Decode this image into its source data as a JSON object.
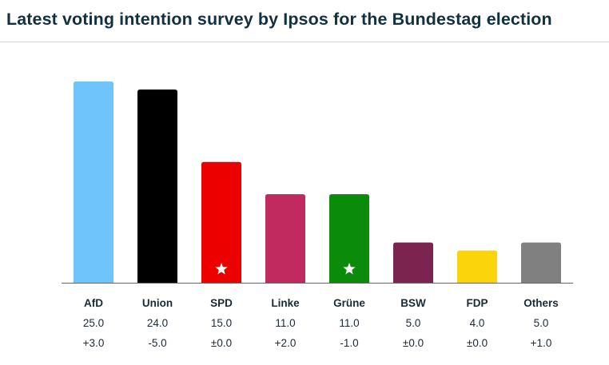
{
  "title": "Latest voting intention survey by Ipsos for the Bundestag election",
  "chart_data": {
    "type": "bar",
    "categories": [
      "AfD",
      "Union",
      "SPD",
      "Linke",
      "Grüne",
      "BSW",
      "FDP",
      "Others"
    ],
    "values": [
      25.0,
      24.0,
      15.0,
      11.0,
      11.0,
      5.0,
      4.0,
      5.0
    ],
    "value_labels": [
      "25.0",
      "24.0",
      "15.0",
      "11.0",
      "11.0",
      "5.0",
      "4.0",
      "5.0"
    ],
    "change_labels": [
      "+3.0",
      "-5.0",
      "±0.0",
      "+2.0",
      "-1.0",
      "±0.0",
      "±0.0",
      "+1.0"
    ],
    "colors": [
      "#6fc4fb",
      "#000000",
      "#ed0000",
      "#c12a5e",
      "#0a8c0a",
      "#7b2450",
      "#fbd40c",
      "#808080"
    ],
    "star_icons": [
      "",
      "",
      "star-icon",
      "",
      "star-icon",
      "",
      "",
      ""
    ],
    "ylim": [
      0,
      25
    ],
    "grid": false,
    "legend": "none"
  }
}
